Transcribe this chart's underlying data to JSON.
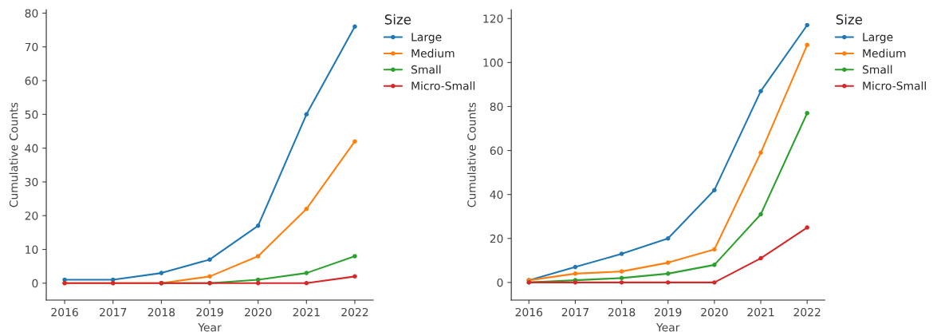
{
  "chart_data": [
    {
      "type": "line",
      "xlabel": "Year",
      "ylabel": "Cumulative Counts",
      "legend_title": "Size",
      "legend": "right",
      "marker": "circle",
      "line_style": "solid",
      "grid": false,
      "x": [
        2016,
        2017,
        2018,
        2019,
        2020,
        2021,
        2022
      ],
      "xlim": [
        2015.62,
        2022.38
      ],
      "xticks": [
        2016,
        2017,
        2018,
        2019,
        2020,
        2021,
        2022
      ],
      "ylim": [
        -5,
        81
      ],
      "yticks": [
        0,
        10,
        20,
        30,
        40,
        50,
        60,
        70,
        80
      ],
      "series": [
        {
          "name": "Large",
          "color": "#1f77b4",
          "values": [
            1,
            1,
            3,
            7,
            17,
            50,
            76
          ]
        },
        {
          "name": "Medium",
          "color": "#ff7f0e",
          "values": [
            0,
            0,
            0,
            2,
            8,
            22,
            42
          ]
        },
        {
          "name": "Small",
          "color": "#2ca02c",
          "values": [
            null,
            null,
            0,
            0,
            1,
            3,
            8
          ]
        },
        {
          "name": "Micro-Small",
          "color": "#d62728",
          "values": [
            0,
            0,
            0,
            0,
            0,
            0,
            2
          ]
        }
      ]
    },
    {
      "type": "line",
      "xlabel": "Year",
      "ylabel": "Cumulative Counts",
      "legend_title": "Size",
      "legend": "right",
      "marker": "circle",
      "line_style": "solid",
      "grid": false,
      "x": [
        2016,
        2017,
        2018,
        2019,
        2020,
        2021,
        2022
      ],
      "xlim": [
        2015.62,
        2022.38
      ],
      "xticks": [
        2016,
        2017,
        2018,
        2019,
        2020,
        2021,
        2022
      ],
      "ylim": [
        -8,
        124
      ],
      "yticks": [
        0,
        20,
        40,
        60,
        80,
        100,
        120
      ],
      "series": [
        {
          "name": "Large",
          "color": "#1f77b4",
          "values": [
            1,
            7,
            13,
            20,
            42,
            87,
            117
          ]
        },
        {
          "name": "Medium",
          "color": "#ff7f0e",
          "values": [
            1,
            4,
            5,
            9,
            15,
            59,
            108
          ]
        },
        {
          "name": "Small",
          "color": "#2ca02c",
          "values": [
            0,
            1,
            2,
            4,
            8,
            31,
            77
          ]
        },
        {
          "name": "Micro-Small",
          "color": "#d62728",
          "values": [
            0,
            0,
            0,
            0,
            0,
            11,
            25
          ]
        }
      ]
    }
  ]
}
